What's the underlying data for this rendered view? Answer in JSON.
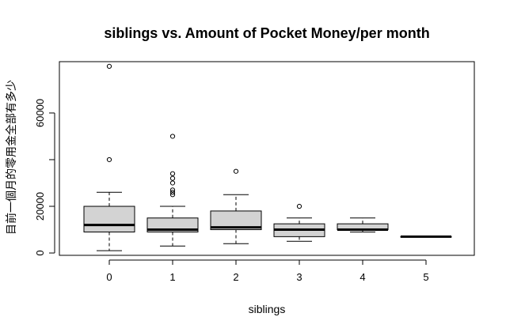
{
  "chart_data": {
    "type": "box",
    "title": "siblings vs. Amount of Pocket Money/per month",
    "xlabel": "siblings",
    "ylabel": "目前一個月的零用金全部有多少",
    "categories": [
      "0",
      "1",
      "2",
      "3",
      "4",
      "5"
    ],
    "y_ticks": [
      0,
      20000,
      40000,
      60000
    ],
    "y_tick_labels": [
      "0",
      "20000",
      "",
      "60000"
    ],
    "ylim": [
      -1000,
      82000
    ],
    "boxes": [
      {
        "category": "0",
        "whisker_low": 1000,
        "q1": 9000,
        "median": 12000,
        "q3": 20000,
        "whisker_high": 26000,
        "outliers": [
          40000,
          80000
        ]
      },
      {
        "category": "1",
        "whisker_low": 3000,
        "q1": 9000,
        "median": 10000,
        "q3": 15000,
        "whisker_high": 20000,
        "outliers": [
          25000,
          26000,
          27000,
          30000,
          32000,
          34000,
          50000
        ]
      },
      {
        "category": "2",
        "whisker_low": 4000,
        "q1": 10000,
        "median": 11000,
        "q3": 18000,
        "whisker_high": 25000,
        "outliers": [
          35000
        ]
      },
      {
        "category": "3",
        "whisker_low": 5000,
        "q1": 7000,
        "median": 10000,
        "q3": 12500,
        "whisker_high": 15000,
        "outliers": [
          20000
        ]
      },
      {
        "category": "4",
        "whisker_low": 9000,
        "q1": 10000,
        "median": 10000,
        "q3": 12500,
        "whisker_high": 15000,
        "outliers": []
      },
      {
        "category": "5",
        "whisker_low": 7000,
        "q1": 7000,
        "median": 7000,
        "q3": 7000,
        "whisker_high": 7000,
        "outliers": []
      }
    ],
    "grid": false,
    "box_fill": "#d3d3d3",
    "line_color": "#000000"
  }
}
